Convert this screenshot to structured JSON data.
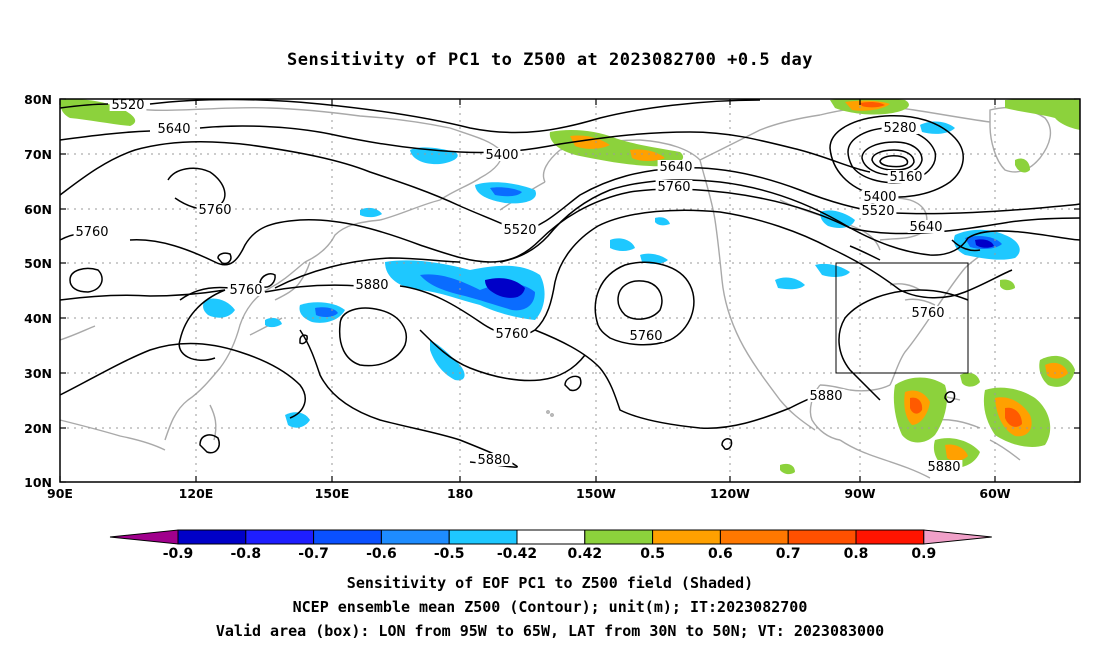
{
  "title": "Sensitivity of PC1 to Z500 at 2023082700 +0.5 day",
  "axes": {
    "lat_labels": [
      "80N",
      "70N",
      "60N",
      "50N",
      "40N",
      "30N",
      "20N",
      "10N"
    ],
    "lon_labels": [
      "90E",
      "120E",
      "150E",
      "180",
      "150W",
      "120W",
      "90W",
      "60W"
    ]
  },
  "colors": {
    "contour": "#000000",
    "coast": "#a9a9a9",
    "neg_light": "#1ec8ff",
    "neg_mid": "#0a6cff",
    "neg_dark": "#0000c8",
    "pos_green": "#8cd23c",
    "pos_orange": "#ff9600",
    "pos_red": "#ff5a00"
  },
  "contour_labels": [
    "5520",
    "5640",
    "5760",
    "5760",
    "5400",
    "5640",
    "5760",
    "5520",
    "5280",
    "5160",
    "5400",
    "5520",
    "5640",
    "5760",
    "5880",
    "5760",
    "5760",
    "5760",
    "5880",
    "5880",
    "5880"
  ],
  "colorbar": {
    "ticks": [
      "-0.9",
      "-0.8",
      "-0.7",
      "-0.6",
      "-0.5",
      "-0.42",
      "0.42",
      "0.5",
      "0.6",
      "0.7",
      "0.8",
      "0.9"
    ],
    "colors": [
      "#a0008c",
      "#0000c8",
      "#1e1eff",
      "#0a50ff",
      "#1e8cff",
      "#1ec8ff",
      "#ffffff",
      "#8cd23c",
      "#ffa000",
      "#ff7800",
      "#ff5000",
      "#ff1400",
      "#f0a0c8"
    ]
  },
  "captions": {
    "line1": "Sensitivity of EOF PC1 to Z500 field (Shaded)",
    "line2": "NCEP ensemble mean Z500 (Contour); unit(m); IT:2023082700",
    "line3": "Valid area (box): LON from 95W to 65W, LAT from 30N to 50N; VT: 2023083000"
  }
}
